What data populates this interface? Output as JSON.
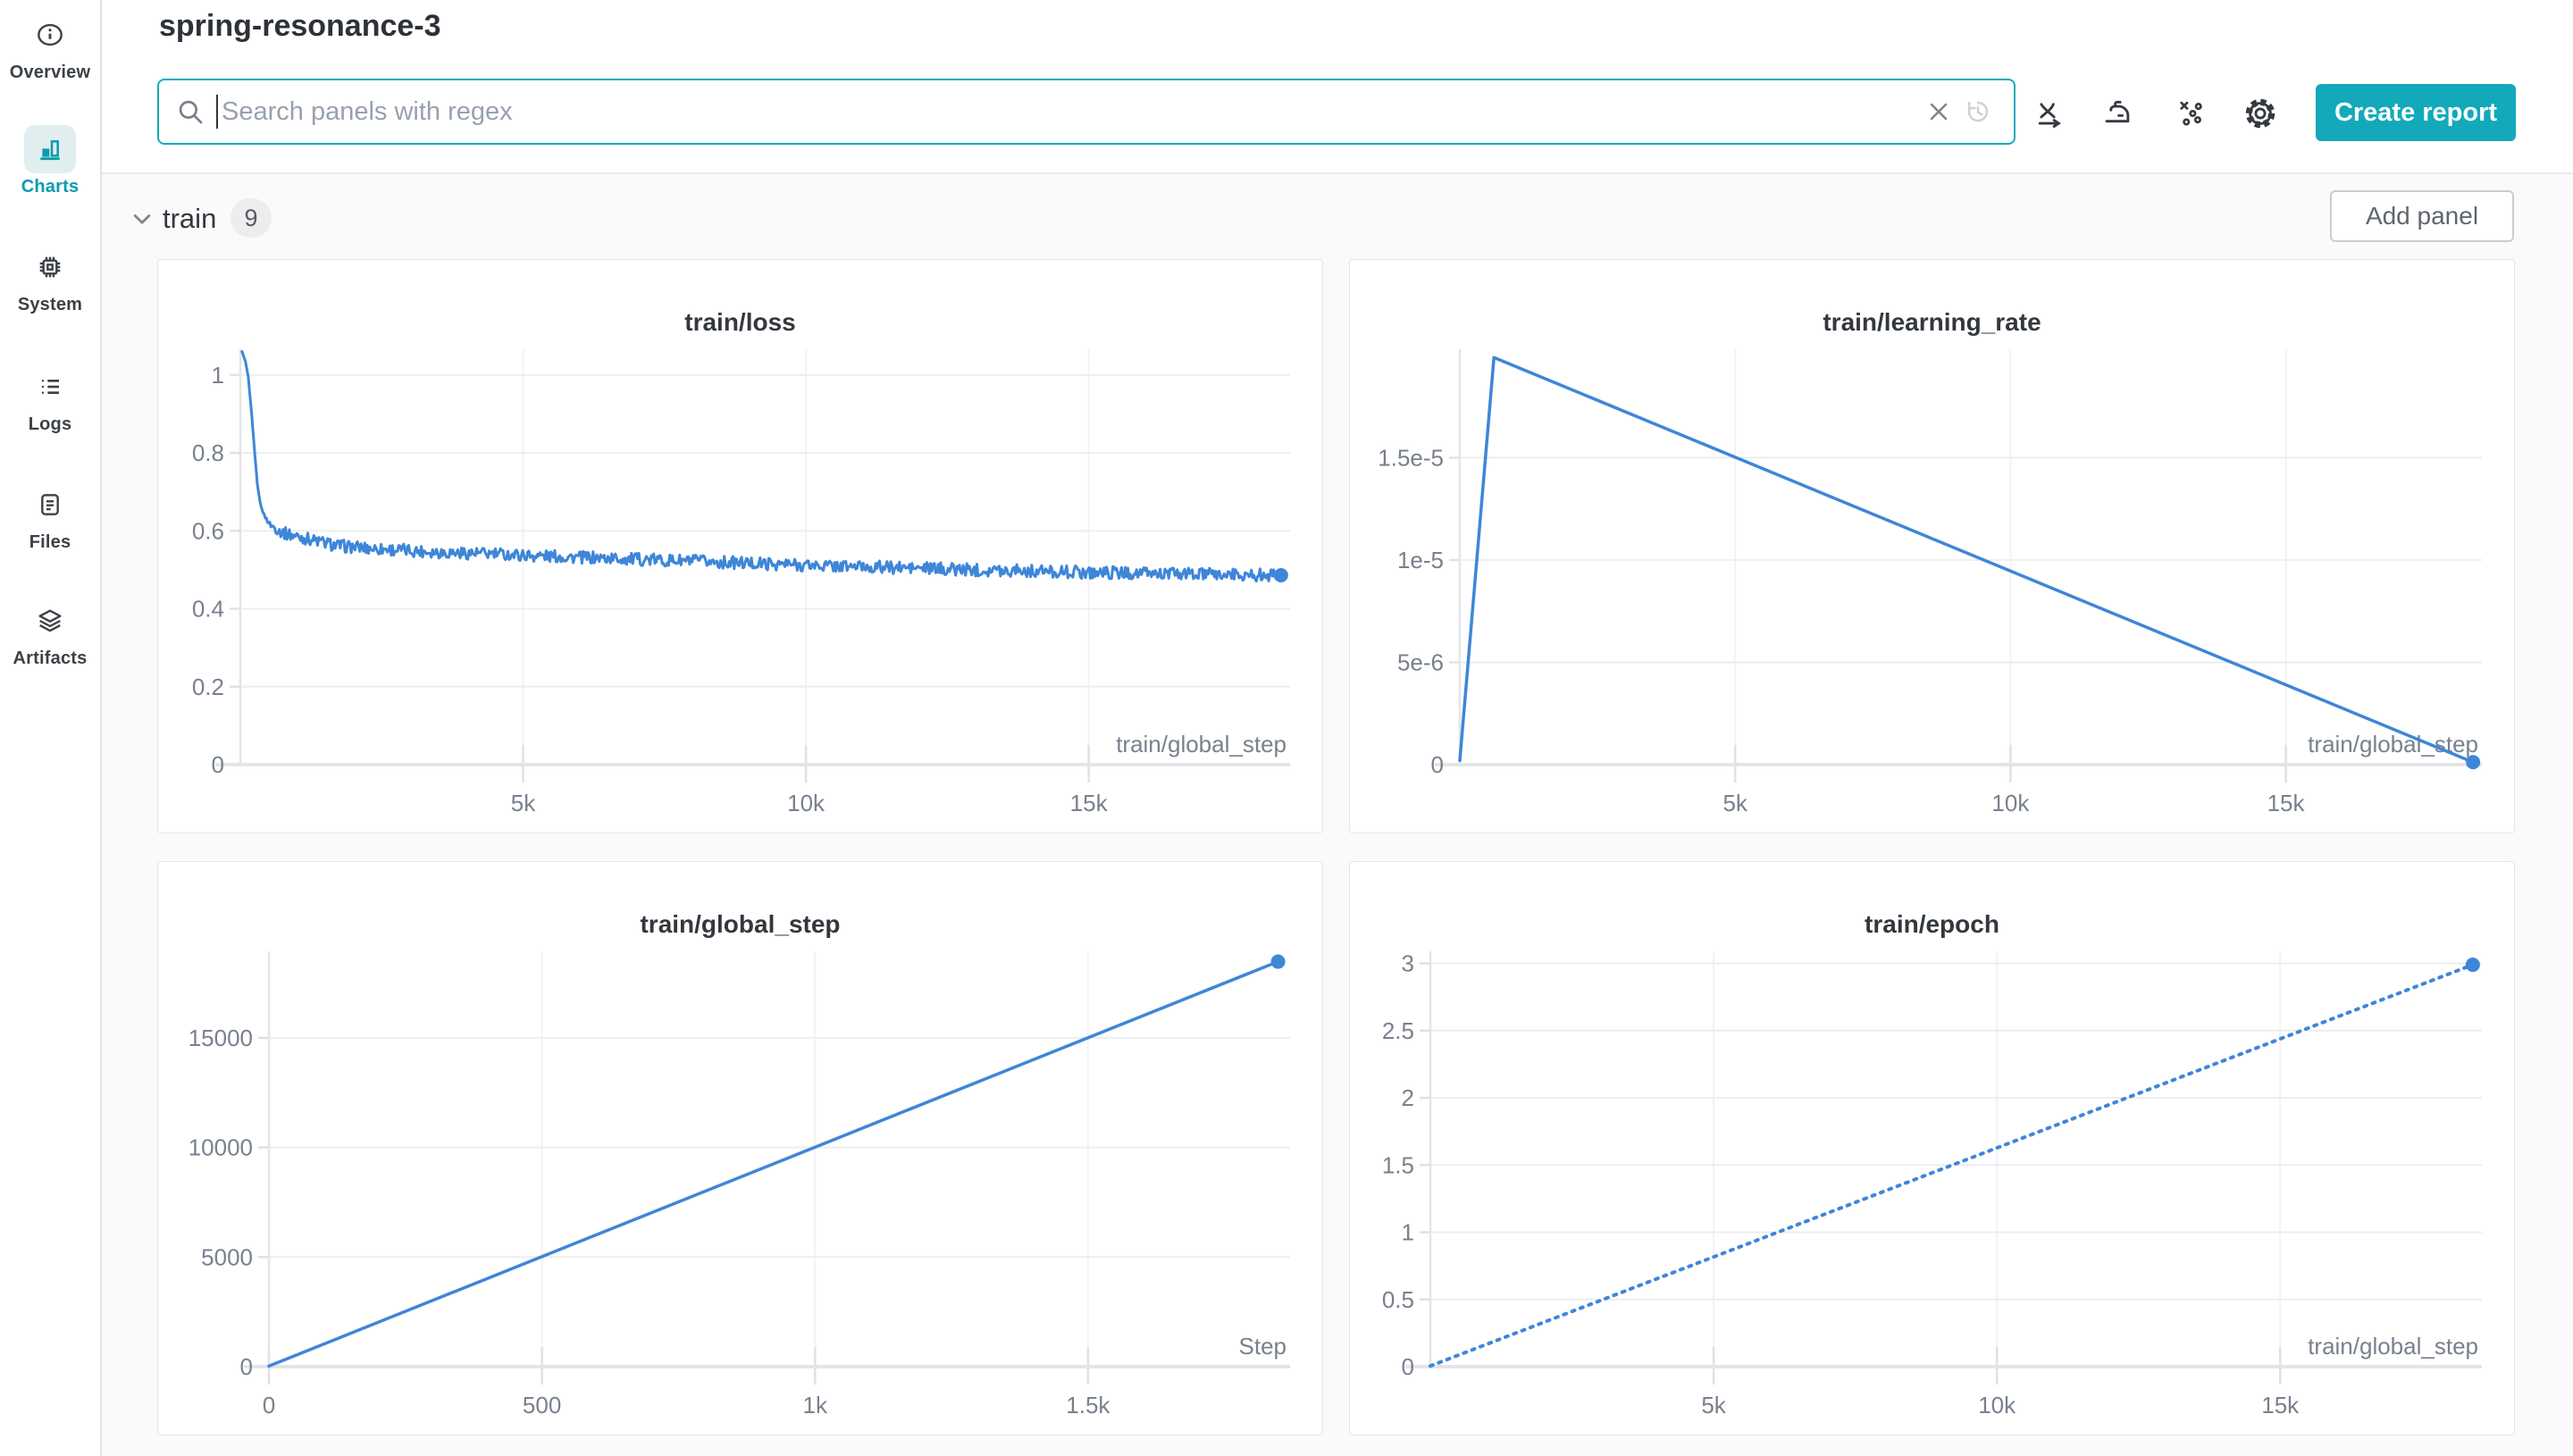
{
  "sidebar": {
    "items": [
      {
        "label": "Overview",
        "icon": "info-icon",
        "active": false
      },
      {
        "label": "Charts",
        "icon": "bar-chart-icon",
        "active": true
      },
      {
        "label": "System",
        "icon": "chip-icon",
        "active": false
      },
      {
        "label": "Logs",
        "icon": "list-icon",
        "active": false
      },
      {
        "label": "Files",
        "icon": "document-icon",
        "active": false
      },
      {
        "label": "Artifacts",
        "icon": "layers-icon",
        "active": false
      }
    ]
  },
  "header": {
    "title": "spring-resonance-3",
    "search_placeholder": "Search panels with regex",
    "create_report_label": "Create report"
  },
  "section": {
    "name": "train",
    "panel_count": "9",
    "add_panel_label": "Add panel"
  },
  "colors": {
    "accent_teal": "#13a9ba",
    "line_blue": "#3e86d8",
    "active_item_bg": "#e1eef0",
    "active_item_fg": "#0a9cab",
    "grid": "#edeef0",
    "axis": "#e3e5e8",
    "tick_label": "#79808e"
  },
  "chart_data": [
    {
      "type": "line",
      "title": "train/loss",
      "xlabel": "train/global_step",
      "xlim": [
        0,
        18560
      ],
      "ylim": [
        0,
        1.066
      ],
      "x_ticks": [
        [
          5000,
          "5k"
        ],
        [
          10000,
          "10k"
        ],
        [
          15000,
          "15k"
        ]
      ],
      "y_ticks": [
        [
          0,
          "0"
        ],
        [
          0.2,
          "0.2"
        ],
        [
          0.4,
          "0.4"
        ],
        [
          0.6,
          "0.6"
        ],
        [
          0.8,
          "0.8"
        ],
        [
          1,
          "1"
        ]
      ],
      "points": [
        [
          30,
          1.06
        ],
        [
          90,
          1.035
        ],
        [
          140,
          0.995
        ],
        [
          200,
          0.9
        ],
        [
          255,
          0.8
        ],
        [
          300,
          0.72
        ],
        [
          350,
          0.672
        ],
        [
          420,
          0.64
        ],
        [
          520,
          0.617
        ],
        [
          650,
          0.603
        ],
        [
          800,
          0.593
        ],
        [
          1000,
          0.586
        ],
        [
          1300,
          0.576
        ],
        [
          1700,
          0.562
        ],
        [
          2200,
          0.556
        ],
        [
          2800,
          0.551
        ],
        [
          3600,
          0.545
        ],
        [
          4600,
          0.54
        ],
        [
          5800,
          0.533
        ],
        [
          7200,
          0.526
        ],
        [
          8600,
          0.519
        ],
        [
          10000,
          0.512
        ],
        [
          11500,
          0.506
        ],
        [
          13000,
          0.5
        ],
        [
          14500,
          0.495
        ],
        [
          16000,
          0.491
        ],
        [
          17200,
          0.488
        ],
        [
          18400,
          0.486
        ]
      ],
      "noise": 0.016,
      "stroke_width": 3,
      "end_dot": true,
      "layout": {
        "ml": 92,
        "mr": 38,
        "mt": 100,
        "mb": 78
      }
    },
    {
      "type": "line",
      "title": "train/learning_rate",
      "xlabel": "train/global_step",
      "xlim": [
        0,
        18560
      ],
      "ylim": [
        0,
        2.03e-05
      ],
      "x_ticks": [
        [
          5000,
          "5k"
        ],
        [
          10000,
          "10k"
        ],
        [
          15000,
          "15k"
        ]
      ],
      "y_ticks": [
        [
          0,
          "0"
        ],
        [
          5e-06,
          "5e-6"
        ],
        [
          1e-05,
          "1e-5"
        ],
        [
          1.5e-05,
          "1.5e-5"
        ]
      ],
      "points": [
        [
          0,
          2e-07
        ],
        [
          620,
          1.99e-05
        ],
        [
          18400,
          1.2e-07
        ]
      ],
      "noise": 0,
      "stroke_width": 3.5,
      "end_dot": true,
      "layout": {
        "ml": 123,
        "mr": 38,
        "mt": 100,
        "mb": 78
      }
    },
    {
      "type": "line",
      "title": "train/global_step",
      "xlabel": "Step",
      "xlim": [
        0,
        1870
      ],
      "ylim": [
        0,
        18950
      ],
      "x_ticks": [
        [
          0,
          "0"
        ],
        [
          500,
          "500"
        ],
        [
          1000,
          "1k"
        ],
        [
          1500,
          "1.5k"
        ]
      ],
      "y_ticks": [
        [
          0,
          "0"
        ],
        [
          5000,
          "5000"
        ],
        [
          10000,
          "10000"
        ],
        [
          15000,
          "15000"
        ]
      ],
      "points": [
        [
          0,
          30
        ],
        [
          1848,
          18480
        ]
      ],
      "noise": 0,
      "stroke_width": 3.5,
      "end_dot": true,
      "layout": {
        "ml": 124,
        "mr": 38,
        "mt": 100,
        "mb": 78
      }
    },
    {
      "type": "line",
      "title": "train/epoch",
      "xlabel": "train/global_step",
      "xlim": [
        0,
        18560
      ],
      "ylim": [
        0,
        3.09
      ],
      "x_ticks": [
        [
          5000,
          "5k"
        ],
        [
          10000,
          "10k"
        ],
        [
          15000,
          "15k"
        ]
      ],
      "y_ticks": [
        [
          0,
          "0"
        ],
        [
          0.5,
          "0.5"
        ],
        [
          1,
          "1"
        ],
        [
          1.5,
          "1.5"
        ],
        [
          2,
          "2"
        ],
        [
          2.5,
          "2.5"
        ],
        [
          3,
          "3"
        ]
      ],
      "points": [
        [
          0,
          0.005
        ],
        [
          18400,
          2.99
        ]
      ],
      "noise": 0,
      "stroke_width": 4,
      "dash": "3 7",
      "end_dot": true,
      "layout": {
        "ml": 90,
        "mr": 38,
        "mt": 100,
        "mb": 78
      }
    }
  ]
}
